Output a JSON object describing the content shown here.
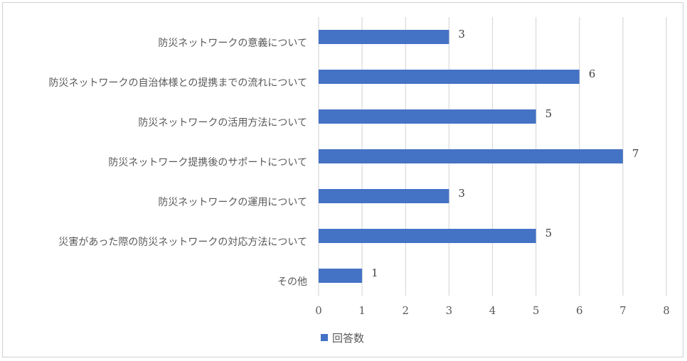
{
  "chart_data": {
    "type": "bar",
    "orientation": "horizontal",
    "categories": [
      "防災ネットワークの意義について",
      "防災ネットワークの自治体様との提携までの流れについて",
      "防災ネットワークの活用方法について",
      "防災ネットワーク提携後のサポートについて",
      "防災ネットワークの運用について",
      "災害があった際の防災ネットワークの対応方法について",
      "その他"
    ],
    "series": [
      {
        "name": "回答数",
        "values": [
          3,
          6,
          5,
          7,
          3,
          5,
          1
        ],
        "color": "#4472C4"
      }
    ],
    "xlim": [
      0,
      8
    ],
    "x_ticks": [
      "0",
      "1",
      "2",
      "3",
      "4",
      "5",
      "6",
      "7",
      "8"
    ],
    "grid": "vertical",
    "legend": "bottom"
  }
}
